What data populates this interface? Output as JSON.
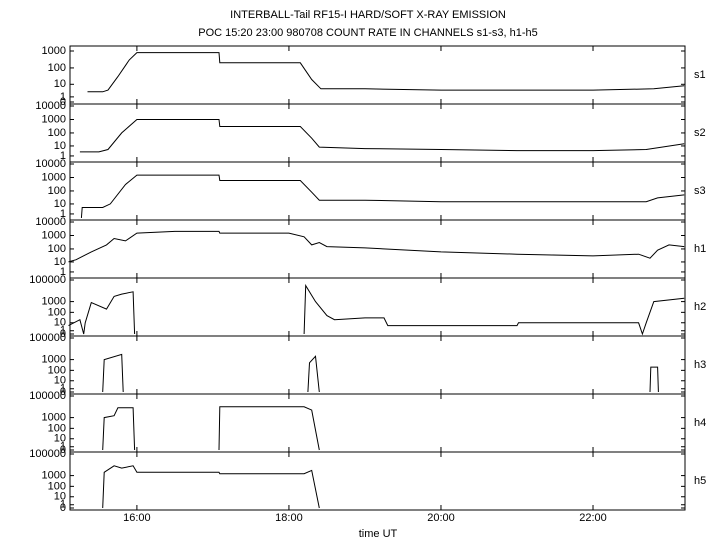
{
  "title": "INTERBALL-Tail RF15-I HARD/SOFT X-RAY EMISSION",
  "subtitle": "POC 15:20 23:00 980708  COUNT RATE IN CHANNELS s1-s3, h1-h5",
  "x_label": "time UT",
  "xlim": [
    15.12,
    23.21
  ],
  "xticks": [
    {
      "value": 16,
      "label": "16:00"
    },
    {
      "value": 18,
      "label": "18:00"
    },
    {
      "value": 20,
      "label": "20:00"
    },
    {
      "value": 22,
      "label": "22:00"
    }
  ],
  "chart_data": [
    {
      "type": "line",
      "label": "s1",
      "log_scale": true,
      "color": "#000000",
      "ylim": [
        0,
        1500
      ],
      "yticks": [
        1000,
        100,
        10,
        1,
        0
      ],
      "x": [
        15.35,
        15.55,
        15.62,
        15.75,
        15.9,
        16.0,
        17.08,
        17.09,
        18.15,
        18.3,
        18.42,
        19.0,
        20.0,
        21.0,
        22.0,
        22.8,
        23.2
      ],
      "values": [
        3,
        3,
        4,
        30,
        300,
        800,
        800,
        200,
        200,
        20,
        5,
        5,
        4,
        4,
        4,
        5,
        8
      ]
    },
    {
      "type": "line",
      "label": "s2",
      "log_scale": true,
      "color": "#000000",
      "ylim": [
        0,
        10000
      ],
      "yticks": [
        10000,
        1000,
        100,
        10,
        1
      ],
      "x": [
        15.25,
        15.5,
        15.62,
        15.8,
        16.0,
        17.08,
        17.09,
        18.15,
        18.3,
        18.4,
        19.0,
        20.0,
        21.0,
        22.0,
        22.7,
        23.2
      ],
      "values": [
        3,
        3,
        5,
        100,
        1000,
        1000,
        300,
        300,
        40,
        8,
        6,
        5,
        4,
        4,
        5,
        15
      ]
    },
    {
      "type": "line",
      "label": "s3",
      "log_scale": true,
      "color": "#000000",
      "ylim": [
        0,
        10000
      ],
      "yticks": [
        10000,
        1000,
        100,
        10,
        1
      ],
      "x": [
        15.27,
        15.28,
        15.55,
        15.65,
        15.85,
        16.0,
        17.08,
        17.09,
        18.15,
        18.3,
        18.4,
        19.0,
        20.0,
        21.0,
        22.0,
        22.7,
        22.85,
        23.2
      ],
      "values": [
        0,
        5,
        5,
        10,
        300,
        1500,
        1500,
        600,
        600,
        80,
        20,
        20,
        15,
        15,
        15,
        15,
        30,
        50
      ]
    },
    {
      "type": "line",
      "label": "h1",
      "log_scale": true,
      "color": "#000000",
      "ylim": [
        0,
        10000
      ],
      "yticks": [
        10000,
        1000,
        100,
        10,
        1
      ],
      "x": [
        15.1,
        15.2,
        15.4,
        15.6,
        15.7,
        15.85,
        16.0,
        16.5,
        17.08,
        17.09,
        18.0,
        18.2,
        18.3,
        18.4,
        18.5,
        19.0,
        20.0,
        21.0,
        22.0,
        22.6,
        22.75,
        22.85,
        23.0,
        23.2
      ],
      "values": [
        10,
        15,
        60,
        200,
        600,
        400,
        1500,
        2000,
        2000,
        1500,
        1500,
        800,
        200,
        300,
        150,
        120,
        60,
        40,
        30,
        40,
        20,
        80,
        200,
        150
      ]
    },
    {
      "type": "line",
      "label": "h2",
      "log_scale": true,
      "color": "#000000",
      "ylim": [
        0,
        100000
      ],
      "yticks": [
        100000,
        1000,
        100,
        10,
        1,
        0
      ],
      "x": [
        15.1,
        15.25,
        15.3,
        15.32,
        15.4,
        15.6,
        15.7,
        15.8,
        15.95,
        15.97,
        16.0,
        18.2,
        18.22,
        18.35,
        18.5,
        18.6,
        19.0,
        19.25,
        19.3,
        21.0,
        21.02,
        22.6,
        22.65,
        22.7,
        22.8,
        23.2
      ],
      "values": [
        5,
        20,
        0,
        10,
        800,
        200,
        3000,
        5000,
        8000,
        0,
        null,
        0,
        30000,
        1000,
        50,
        20,
        30,
        30,
        5,
        5,
        10,
        10,
        0,
        10,
        1000,
        2000
      ]
    },
    {
      "type": "line",
      "label": "h3",
      "log_scale": true,
      "color": "#000000",
      "ylim": [
        0,
        100000
      ],
      "yticks": [
        100000,
        1000,
        100,
        10,
        1,
        0
      ],
      "x": [
        15.55,
        15.57,
        15.8,
        15.82,
        16.0,
        18.25,
        18.27,
        18.35,
        18.4,
        20.0,
        22.75,
        22.76,
        22.85,
        22.86
      ],
      "values": [
        0,
        1000,
        3000,
        0,
        null,
        0,
        500,
        2000,
        0,
        null,
        0,
        200,
        200,
        0
      ]
    },
    {
      "type": "line",
      "label": "h4",
      "log_scale": true,
      "color": "#000000",
      "ylim": [
        0,
        100000
      ],
      "yticks": [
        100000,
        1000,
        100,
        10,
        1,
        0
      ],
      "x": [
        15.55,
        15.57,
        15.7,
        15.75,
        15.95,
        15.97,
        16.5,
        17.08,
        17.09,
        18.2,
        18.3,
        18.4
      ],
      "values": [
        0,
        1000,
        1500,
        8000,
        8000,
        0,
        null,
        0,
        10000,
        10000,
        5000,
        0
      ]
    },
    {
      "type": "line",
      "label": "h5",
      "log_scale": true,
      "color": "#000000",
      "ylim": [
        0,
        100000
      ],
      "yticks": [
        100000,
        1000,
        100,
        10,
        1,
        0
      ],
      "x": [
        15.55,
        15.57,
        15.7,
        15.8,
        15.95,
        16.0,
        17.08,
        17.09,
        18.2,
        18.3,
        18.4
      ],
      "values": [
        0,
        2000,
        8000,
        5000,
        8000,
        2000,
        2000,
        1500,
        1500,
        3000,
        0
      ]
    }
  ]
}
